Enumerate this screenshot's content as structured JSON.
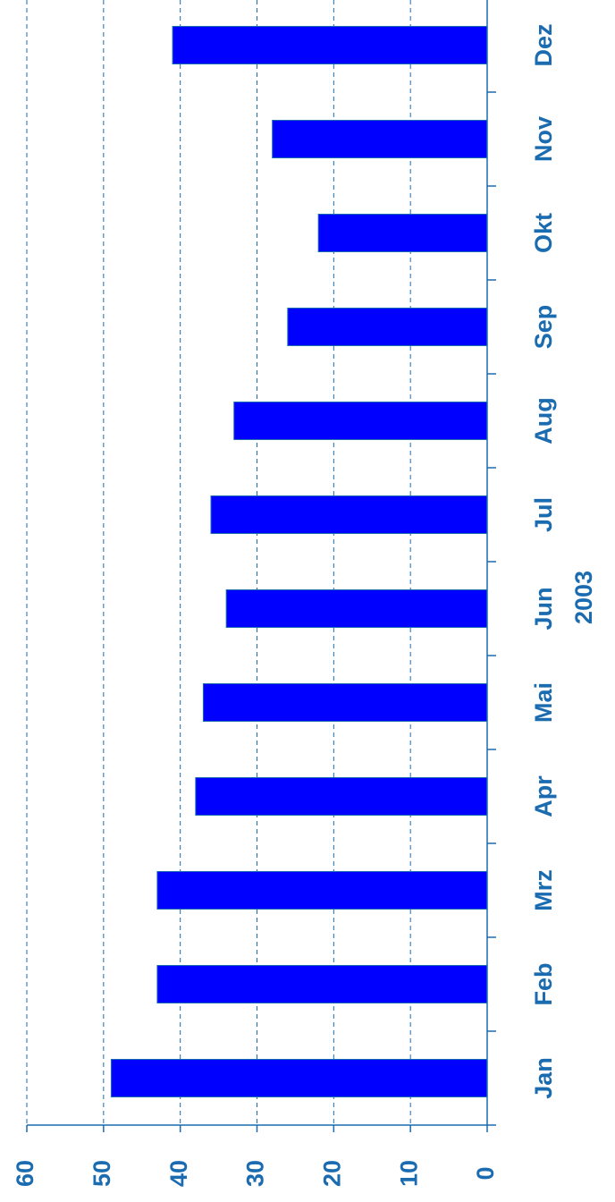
{
  "chart_data": {
    "type": "bar",
    "orientation": "rotated",
    "xlabel": "2003",
    "categories": [
      "Jan",
      "Feb",
      "Mrz",
      "Apr",
      "Mai",
      "Jun",
      "Jul",
      "Aug",
      "Sep",
      "Okt",
      "Nov",
      "Dez"
    ],
    "values": [
      49,
      43,
      43,
      38,
      37,
      34,
      36,
      33,
      26,
      22,
      28,
      41
    ],
    "color": "#0000ff",
    "ylim": [
      0,
      60
    ],
    "yticks": [
      0,
      10,
      20,
      30,
      40,
      50,
      60
    ],
    "grid": true
  }
}
